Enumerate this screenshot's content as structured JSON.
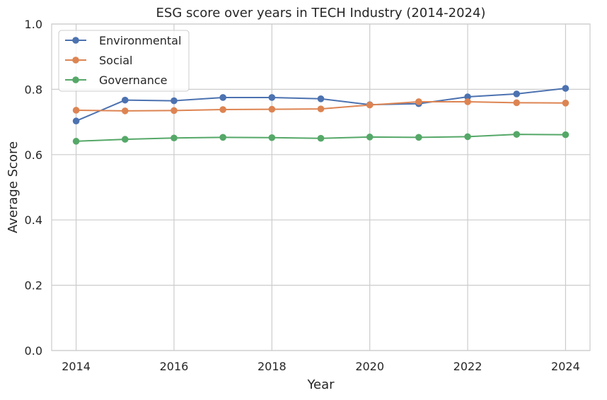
{
  "chart_data": {
    "type": "line",
    "title": "ESG score over years in TECH Industry (2014-2024)",
    "xlabel": "Year",
    "ylabel": "Average Score",
    "x": [
      2014,
      2015,
      2016,
      2017,
      2018,
      2019,
      2020,
      2021,
      2022,
      2023,
      2024
    ],
    "xlim": [
      2013.5,
      2024.5
    ],
    "ylim": [
      0,
      1.0
    ],
    "xticks": [
      2014,
      2016,
      2018,
      2020,
      2022,
      2024
    ],
    "xtick_labels": [
      "2014",
      "2016",
      "2018",
      "2020",
      "2022",
      "2024"
    ],
    "yticks": [
      0,
      0.2,
      0.4,
      0.6,
      0.8,
      1.0
    ],
    "ytick_labels": [
      "0.0",
      "0.2",
      "0.4",
      "0.6",
      "0.8",
      "1.0"
    ],
    "grid": true,
    "legend_position": "top-left",
    "series": [
      {
        "name": "Environmental",
        "color": "#4c72b0",
        "values": [
          0.703,
          0.767,
          0.765,
          0.775,
          0.775,
          0.771,
          0.753,
          0.756,
          0.777,
          0.786,
          0.803
        ]
      },
      {
        "name": "Social",
        "color": "#dd8452",
        "values": [
          0.736,
          0.734,
          0.735,
          0.738,
          0.739,
          0.74,
          0.752,
          0.762,
          0.762,
          0.759,
          0.758
        ]
      },
      {
        "name": "Governance",
        "color": "#55a868",
        "values": [
          0.641,
          0.647,
          0.651,
          0.653,
          0.652,
          0.65,
          0.654,
          0.653,
          0.655,
          0.662,
          0.661
        ]
      }
    ]
  }
}
